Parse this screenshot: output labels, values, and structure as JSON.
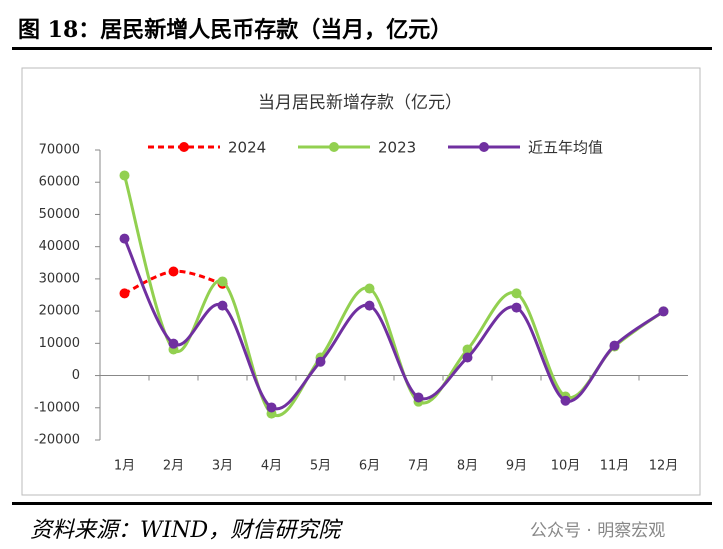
{
  "header": {
    "title": "图 18：居民新增人民币存款（当月，亿元）"
  },
  "chart_data": {
    "type": "line",
    "title": "当月居民新增存款（亿元）",
    "categories": [
      "1月",
      "2月",
      "3月",
      "4月",
      "5月",
      "6月",
      "7月",
      "8月",
      "9月",
      "10月",
      "11月",
      "12月"
    ],
    "series": [
      {
        "name": "2024",
        "color": "#ff0000",
        "line_style": "dashed",
        "values": [
          25500,
          32300,
          28500,
          null,
          null,
          null,
          null,
          null,
          null,
          null,
          null,
          null
        ]
      },
      {
        "name": "2023",
        "color": "#92d050",
        "line_style": "solid",
        "values": [
          62100,
          8100,
          29200,
          -11800,
          5600,
          27000,
          -8100,
          8100,
          25500,
          -6500,
          9000,
          19900
        ]
      },
      {
        "name": "近五年均值",
        "color": "#7030a0",
        "line_style": "solid",
        "values": [
          42500,
          9900,
          21700,
          -9900,
          4300,
          21700,
          -6800,
          5600,
          21100,
          -7800,
          9300,
          19900
        ]
      }
    ],
    "ylim": [
      -20000,
      70000
    ],
    "yticks": [
      -20000,
      -10000,
      0,
      10000,
      20000,
      30000,
      40000,
      50000,
      60000,
      70000
    ],
    "smooth": true,
    "legend": "top"
  },
  "footer": {
    "source": "资料来源：WIND，财信研究院",
    "watermark": "公众号 · 明察宏观"
  }
}
